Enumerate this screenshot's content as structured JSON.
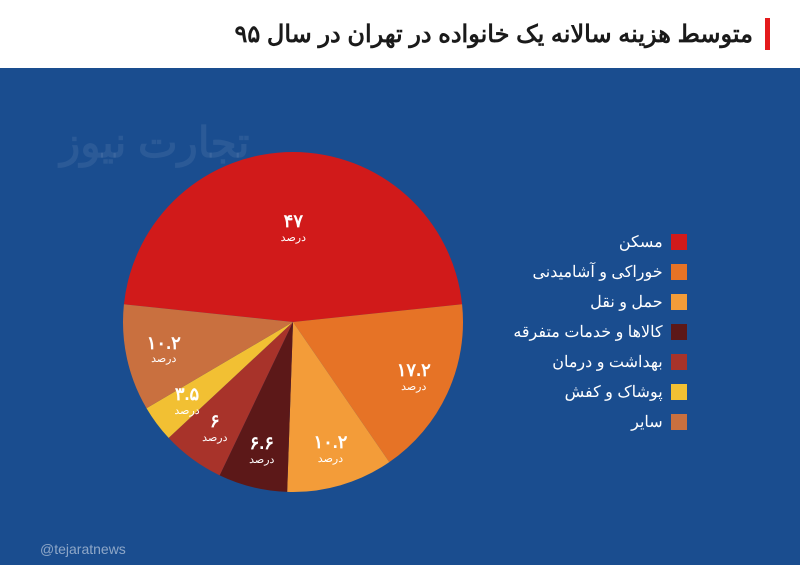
{
  "title": "متوسط هزینه سالانه یک خانواده در تهران در سال ۹۵",
  "watermark": "تجارت نیوز",
  "handle": "@tejaratnews",
  "unit_label": "درصد",
  "background_color": "#1a4d8f",
  "accent_bar_color": "#e41a1c",
  "chart": {
    "type": "pie",
    "slices": [
      {
        "label": "مسکن",
        "value": 47.0,
        "value_display": "۴۷",
        "color": "#d11a1a"
      },
      {
        "label": "خوراکی و آشامیدنی",
        "value": 17.2,
        "value_display": "۱۷.۲",
        "color": "#e67326"
      },
      {
        "label": "حمل و نقل",
        "value": 10.2,
        "value_display": "۱۰.۲",
        "color": "#f39c39"
      },
      {
        "label": "کالاها و خدمات متفرقه",
        "value": 6.6,
        "value_display": "۶.۶",
        "color": "#5c1818"
      },
      {
        "label": "بهداشت و درمان",
        "value": 6.0,
        "value_display": "۶",
        "color": "#a8332a"
      },
      {
        "label": "پوشاک و کفش",
        "value": 3.5,
        "value_display": "۳.۵",
        "color": "#f2c033"
      },
      {
        "label": "سایر",
        "value": 10.2,
        "value_display": "۱۰.۲",
        "color": "#c9703f"
      }
    ]
  }
}
